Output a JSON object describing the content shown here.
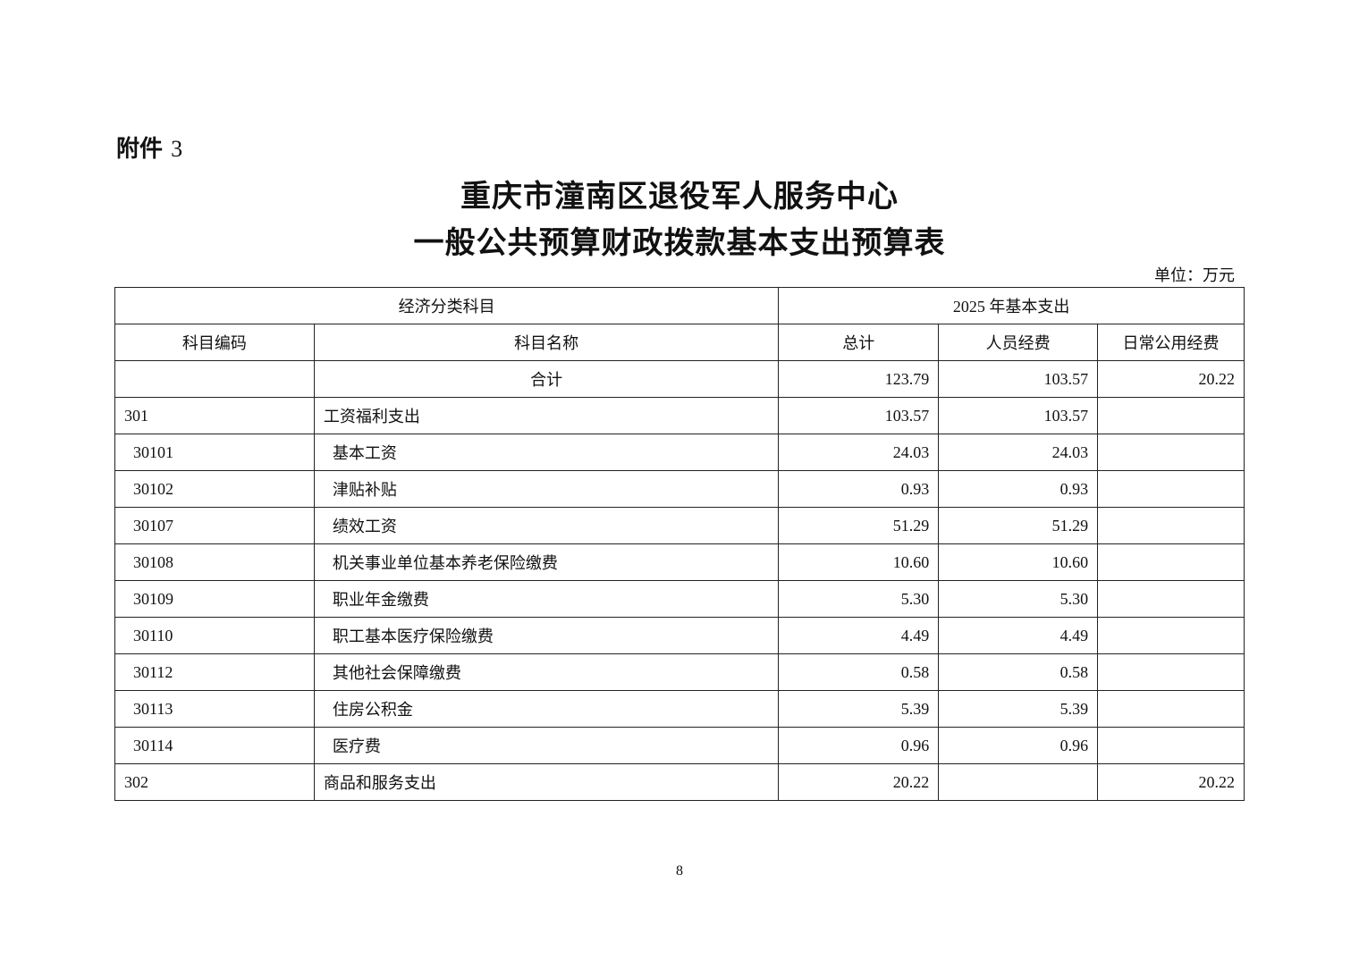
{
  "attachment": {
    "label": "附件",
    "number": "3"
  },
  "title_line1": "重庆市潼南区退役军人服务中心",
  "title_line2": "一般公共预算财政拨款基本支出预算表",
  "unit": "单位：万元",
  "table": {
    "group_headers": [
      "经济分类科目",
      "2025 年基本支出"
    ],
    "headers": [
      "科目编码",
      "科目名称",
      "总计",
      "人员经费",
      "日常公用经费"
    ],
    "total_row": {
      "code": "",
      "name": "合计",
      "total": "123.79",
      "personnel": "103.57",
      "public": "20.22"
    },
    "rows": [
      {
        "code": "301",
        "name": "工资福利支出",
        "total": "103.57",
        "personnel": "103.57",
        "public": "",
        "sub": false
      },
      {
        "code": "30101",
        "name": "基本工资",
        "total": "24.03",
        "personnel": "24.03",
        "public": "",
        "sub": true
      },
      {
        "code": "30102",
        "name": "津贴补贴",
        "total": "0.93",
        "personnel": "0.93",
        "public": "",
        "sub": true
      },
      {
        "code": "30107",
        "name": "绩效工资",
        "total": "51.29",
        "personnel": "51.29",
        "public": "",
        "sub": true
      },
      {
        "code": "30108",
        "name": "机关事业单位基本养老保险缴费",
        "total": "10.60",
        "personnel": "10.60",
        "public": "",
        "sub": true
      },
      {
        "code": "30109",
        "name": "职业年金缴费",
        "total": "5.30",
        "personnel": "5.30",
        "public": "",
        "sub": true
      },
      {
        "code": "30110",
        "name": "职工基本医疗保险缴费",
        "total": "4.49",
        "personnel": "4.49",
        "public": "",
        "sub": true
      },
      {
        "code": "30112",
        "name": "其他社会保障缴费",
        "total": "0.58",
        "personnel": "0.58",
        "public": "",
        "sub": true
      },
      {
        "code": "30113",
        "name": "住房公积金",
        "total": "5.39",
        "personnel": "5.39",
        "public": "",
        "sub": true
      },
      {
        "code": "30114",
        "name": "医疗费",
        "total": "0.96",
        "personnel": "0.96",
        "public": "",
        "sub": true
      },
      {
        "code": "302",
        "name": "商品和服务支出",
        "total": "20.22",
        "personnel": "",
        "public": "20.22",
        "sub": false
      }
    ]
  },
  "page_number": "8"
}
